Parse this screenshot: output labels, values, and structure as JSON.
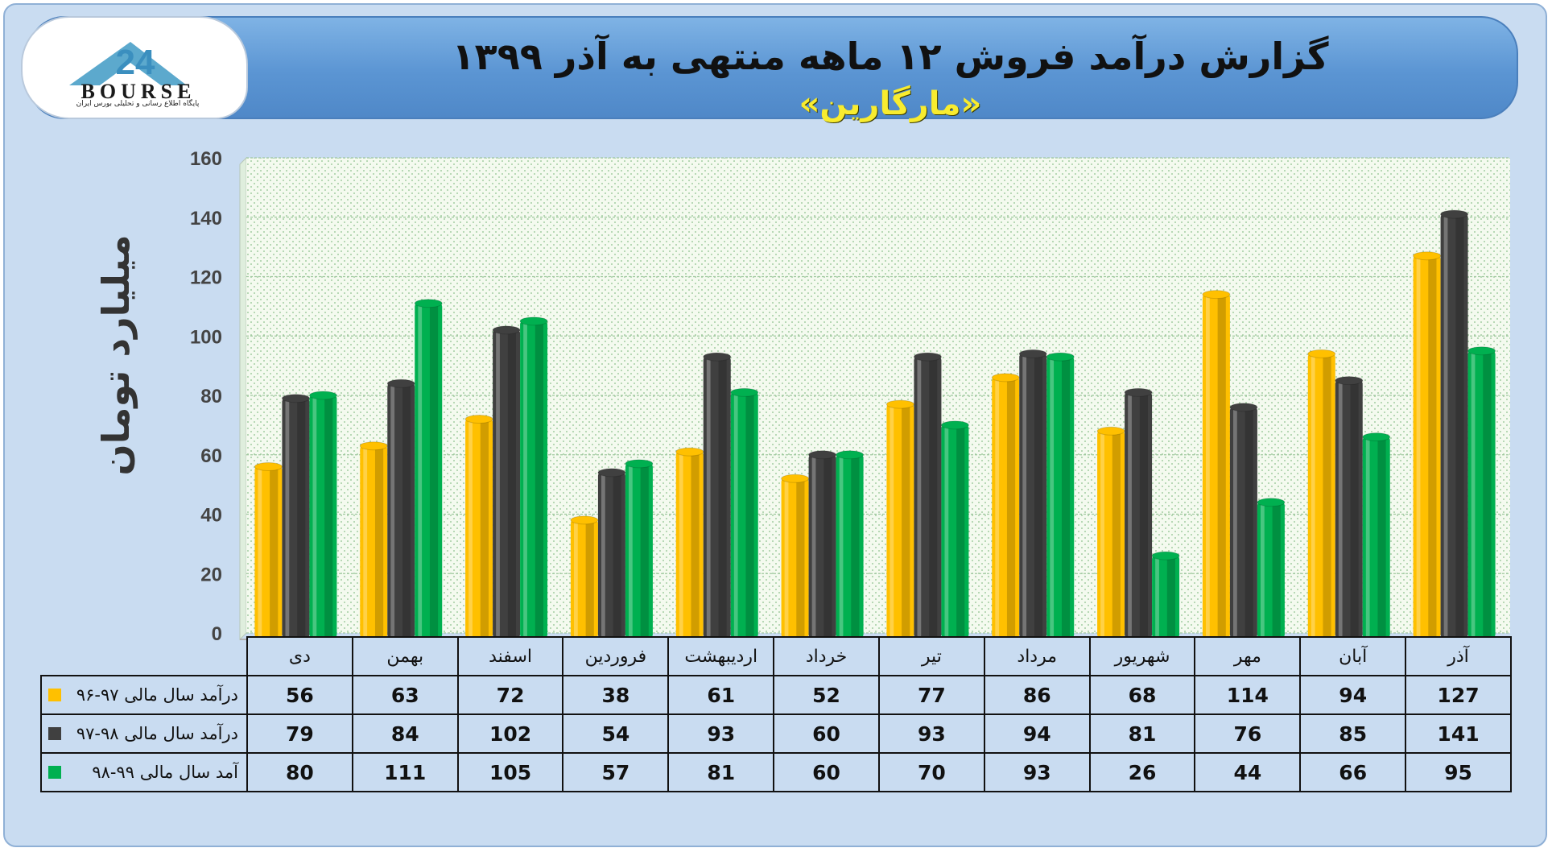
{
  "header": {
    "title": "گزارش درآمد فروش ۱۲ ماهه منتهی به آذر ۱۳۹۹",
    "subtitle": "«مارگارین»",
    "logo_text": "BOURSE",
    "logo_number": "24",
    "logo_caption": "پایگاه اطلاع رسانی و تحلیلی بورس ایران"
  },
  "colors": {
    "series_1": "#ffc000",
    "series_2": "#404040",
    "series_3": "#00b050",
    "plot_bg": "#f2f9ec",
    "grid": "#9fc79f"
  },
  "chart_data": {
    "type": "bar",
    "ylabel": "میلیارد تومان",
    "ylim": [
      0,
      160
    ],
    "yticks": [
      0,
      20,
      40,
      60,
      80,
      100,
      120,
      140,
      160
    ],
    "grid": true,
    "categories": [
      "دی",
      "بهمن",
      "اسفند",
      "فروردین",
      "اردیبهشت",
      "خرداد",
      "تیر",
      "مرداد",
      "شهریور",
      "مهر",
      "آبان",
      "آذر"
    ],
    "series": [
      {
        "name": "درآمد سال مالی ۹۷-۹۶",
        "values": [
          56,
          63,
          72,
          38,
          61,
          52,
          77,
          86,
          68,
          114,
          94,
          127
        ]
      },
      {
        "name": "درآمد سال مالی ۹۸-۹۷",
        "values": [
          79,
          84,
          102,
          54,
          93,
          60,
          93,
          94,
          81,
          76,
          85,
          141
        ]
      },
      {
        "name": "آمد سال مالی ۹۹-۹۸",
        "values": [
          80,
          111,
          105,
          57,
          81,
          60,
          70,
          93,
          26,
          44,
          66,
          95
        ]
      }
    ]
  }
}
